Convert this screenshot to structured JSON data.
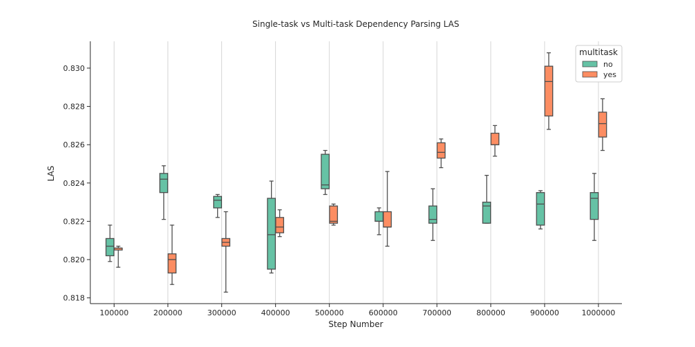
{
  "chart_data": {
    "type": "box",
    "title": "Single-task vs Multi-task Dependency Parsing LAS",
    "xlabel": "Step Number",
    "ylabel": "LAS",
    "categories": [
      "100000",
      "200000",
      "300000",
      "400000",
      "500000",
      "600000",
      "700000",
      "800000",
      "900000",
      "1000000"
    ],
    "ylim": [
      0.8177,
      0.8314
    ],
    "yticks": [
      "0.818",
      "0.820",
      "0.822",
      "0.824",
      "0.826",
      "0.828",
      "0.830"
    ],
    "ytick_values": [
      0.818,
      0.82,
      0.822,
      0.824,
      0.826,
      0.828,
      0.83
    ],
    "grid": "vertical",
    "legend": {
      "title": "multitask",
      "placement": "top-right",
      "entries": [
        "no",
        "yes"
      ]
    },
    "series": [
      {
        "name": "no",
        "color": "#66c2a5",
        "boxes": [
          {
            "whislo": 0.8199,
            "q1": 0.8202,
            "med": 0.8207,
            "q3": 0.8211,
            "whishi": 0.8218
          },
          {
            "whislo": 0.8221,
            "q1": 0.8235,
            "med": 0.8242,
            "q3": 0.8245,
            "whishi": 0.8249
          },
          {
            "whislo": 0.8222,
            "q1": 0.8227,
            "med": 0.8231,
            "q3": 0.8233,
            "whishi": 0.8234
          },
          {
            "whislo": 0.8193,
            "q1": 0.8195,
            "med": 0.8213,
            "q3": 0.8232,
            "whishi": 0.8241
          },
          {
            "whislo": 0.8234,
            "q1": 0.8237,
            "med": 0.8239,
            "q3": 0.8255,
            "whishi": 0.8257
          },
          {
            "whislo": 0.8213,
            "q1": 0.822,
            "med": 0.822,
            "q3": 0.8225,
            "whishi": 0.8227
          },
          {
            "whislo": 0.821,
            "q1": 0.8219,
            "med": 0.8221,
            "q3": 0.8228,
            "whishi": 0.8237
          },
          {
            "whislo": 0.8219,
            "q1": 0.8219,
            "med": 0.8228,
            "q3": 0.823,
            "whishi": 0.8244
          },
          {
            "whislo": 0.8216,
            "q1": 0.8218,
            "med": 0.8229,
            "q3": 0.8235,
            "whishi": 0.8236
          },
          {
            "whislo": 0.821,
            "q1": 0.8221,
            "med": 0.8232,
            "q3": 0.8235,
            "whishi": 0.8245
          }
        ]
      },
      {
        "name": "yes",
        "color": "#fc8d62",
        "boxes": [
          {
            "whislo": 0.8196,
            "q1": 0.8205,
            "med": 0.8206,
            "q3": 0.8206,
            "whishi": 0.8207
          },
          {
            "whislo": 0.8187,
            "q1": 0.8193,
            "med": 0.82,
            "q3": 0.8203,
            "whishi": 0.8218
          },
          {
            "whislo": 0.8183,
            "q1": 0.8207,
            "med": 0.8209,
            "q3": 0.8211,
            "whishi": 0.8225
          },
          {
            "whislo": 0.8212,
            "q1": 0.8214,
            "med": 0.8217,
            "q3": 0.8222,
            "whishi": 0.8226
          },
          {
            "whislo": 0.8218,
            "q1": 0.8219,
            "med": 0.822,
            "q3": 0.8228,
            "whishi": 0.8229
          },
          {
            "whislo": 0.8207,
            "q1": 0.8217,
            "med": 0.8217,
            "q3": 0.8225,
            "whishi": 0.8246
          },
          {
            "whislo": 0.8248,
            "q1": 0.8253,
            "med": 0.8256,
            "q3": 0.8261,
            "whishi": 0.8263
          },
          {
            "whislo": 0.8254,
            "q1": 0.826,
            "med": 0.826,
            "q3": 0.8266,
            "whishi": 0.827
          },
          {
            "whislo": 0.8268,
            "q1": 0.8275,
            "med": 0.8293,
            "q3": 0.8301,
            "whishi": 0.8308
          },
          {
            "whislo": 0.8257,
            "q1": 0.8264,
            "med": 0.8271,
            "q3": 0.8277,
            "whishi": 0.8284
          }
        ]
      }
    ]
  }
}
